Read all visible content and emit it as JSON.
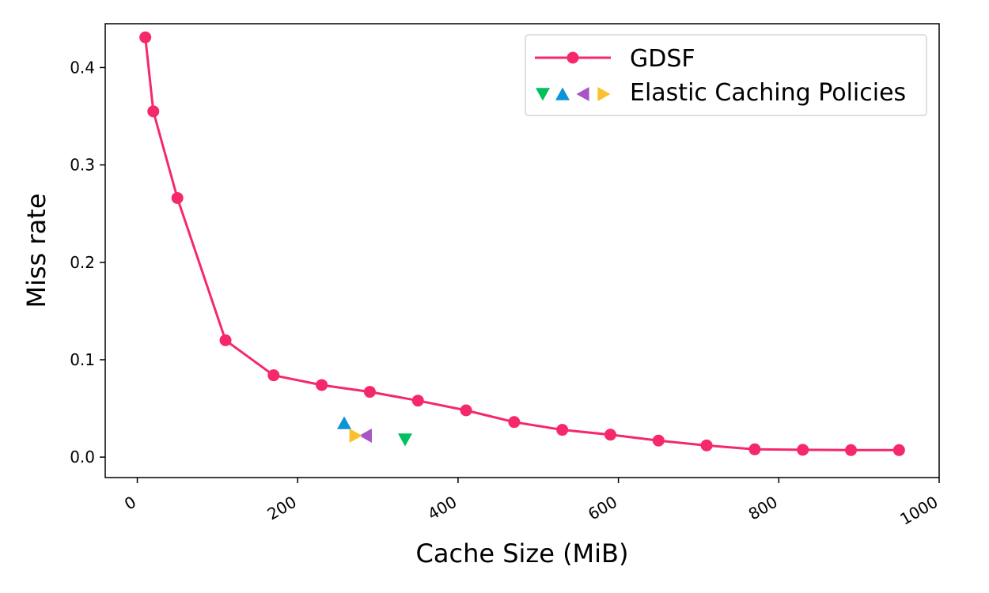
{
  "chart_data": {
    "type": "line",
    "xlabel": "Cache Size (MiB)",
    "ylabel": "Miss rate",
    "xlim": [
      -40,
      1000
    ],
    "ylim": [
      -0.021,
      0.445
    ],
    "x_ticks": [
      0,
      200,
      400,
      600,
      800,
      1000
    ],
    "y_ticks": [
      0.0,
      0.1,
      0.2,
      0.3,
      0.4
    ],
    "x_tick_labels": [
      "0",
      "200",
      "400",
      "600",
      "800",
      "1000"
    ],
    "y_tick_labels": [
      "0.0",
      "0.1",
      "0.2",
      "0.3",
      "0.4"
    ],
    "grid": false,
    "legend_position": "top-right",
    "legend": [
      {
        "label": "GDSF"
      },
      {
        "label": "Elastic Caching Policies"
      }
    ],
    "series": [
      {
        "name": "GDSF",
        "color": "#f5286a",
        "marker": "circle",
        "x": [
          10,
          20,
          50,
          110,
          170,
          230,
          290,
          350,
          410,
          470,
          530,
          590,
          650,
          710,
          770,
          830,
          890,
          950
        ],
        "y": [
          0.431,
          0.355,
          0.266,
          0.12,
          0.084,
          0.074,
          0.067,
          0.058,
          0.048,
          0.036,
          0.028,
          0.023,
          0.017,
          0.012,
          0.008,
          0.0075,
          0.0072,
          0.0072
        ]
      },
      {
        "name": "Elastic Caching Policies",
        "points": [
          {
            "marker": "triangle-down",
            "color": "#00c060",
            "x": 334,
            "y": 0.018
          },
          {
            "marker": "triangle-up",
            "color": "#0b94d6",
            "x": 258,
            "y": 0.035
          },
          {
            "marker": "triangle-left",
            "color": "#a856c6",
            "x": 285,
            "y": 0.022
          },
          {
            "marker": "triangle-right",
            "color": "#fbc02d",
            "x": 272,
            "y": 0.022
          }
        ]
      }
    ]
  }
}
